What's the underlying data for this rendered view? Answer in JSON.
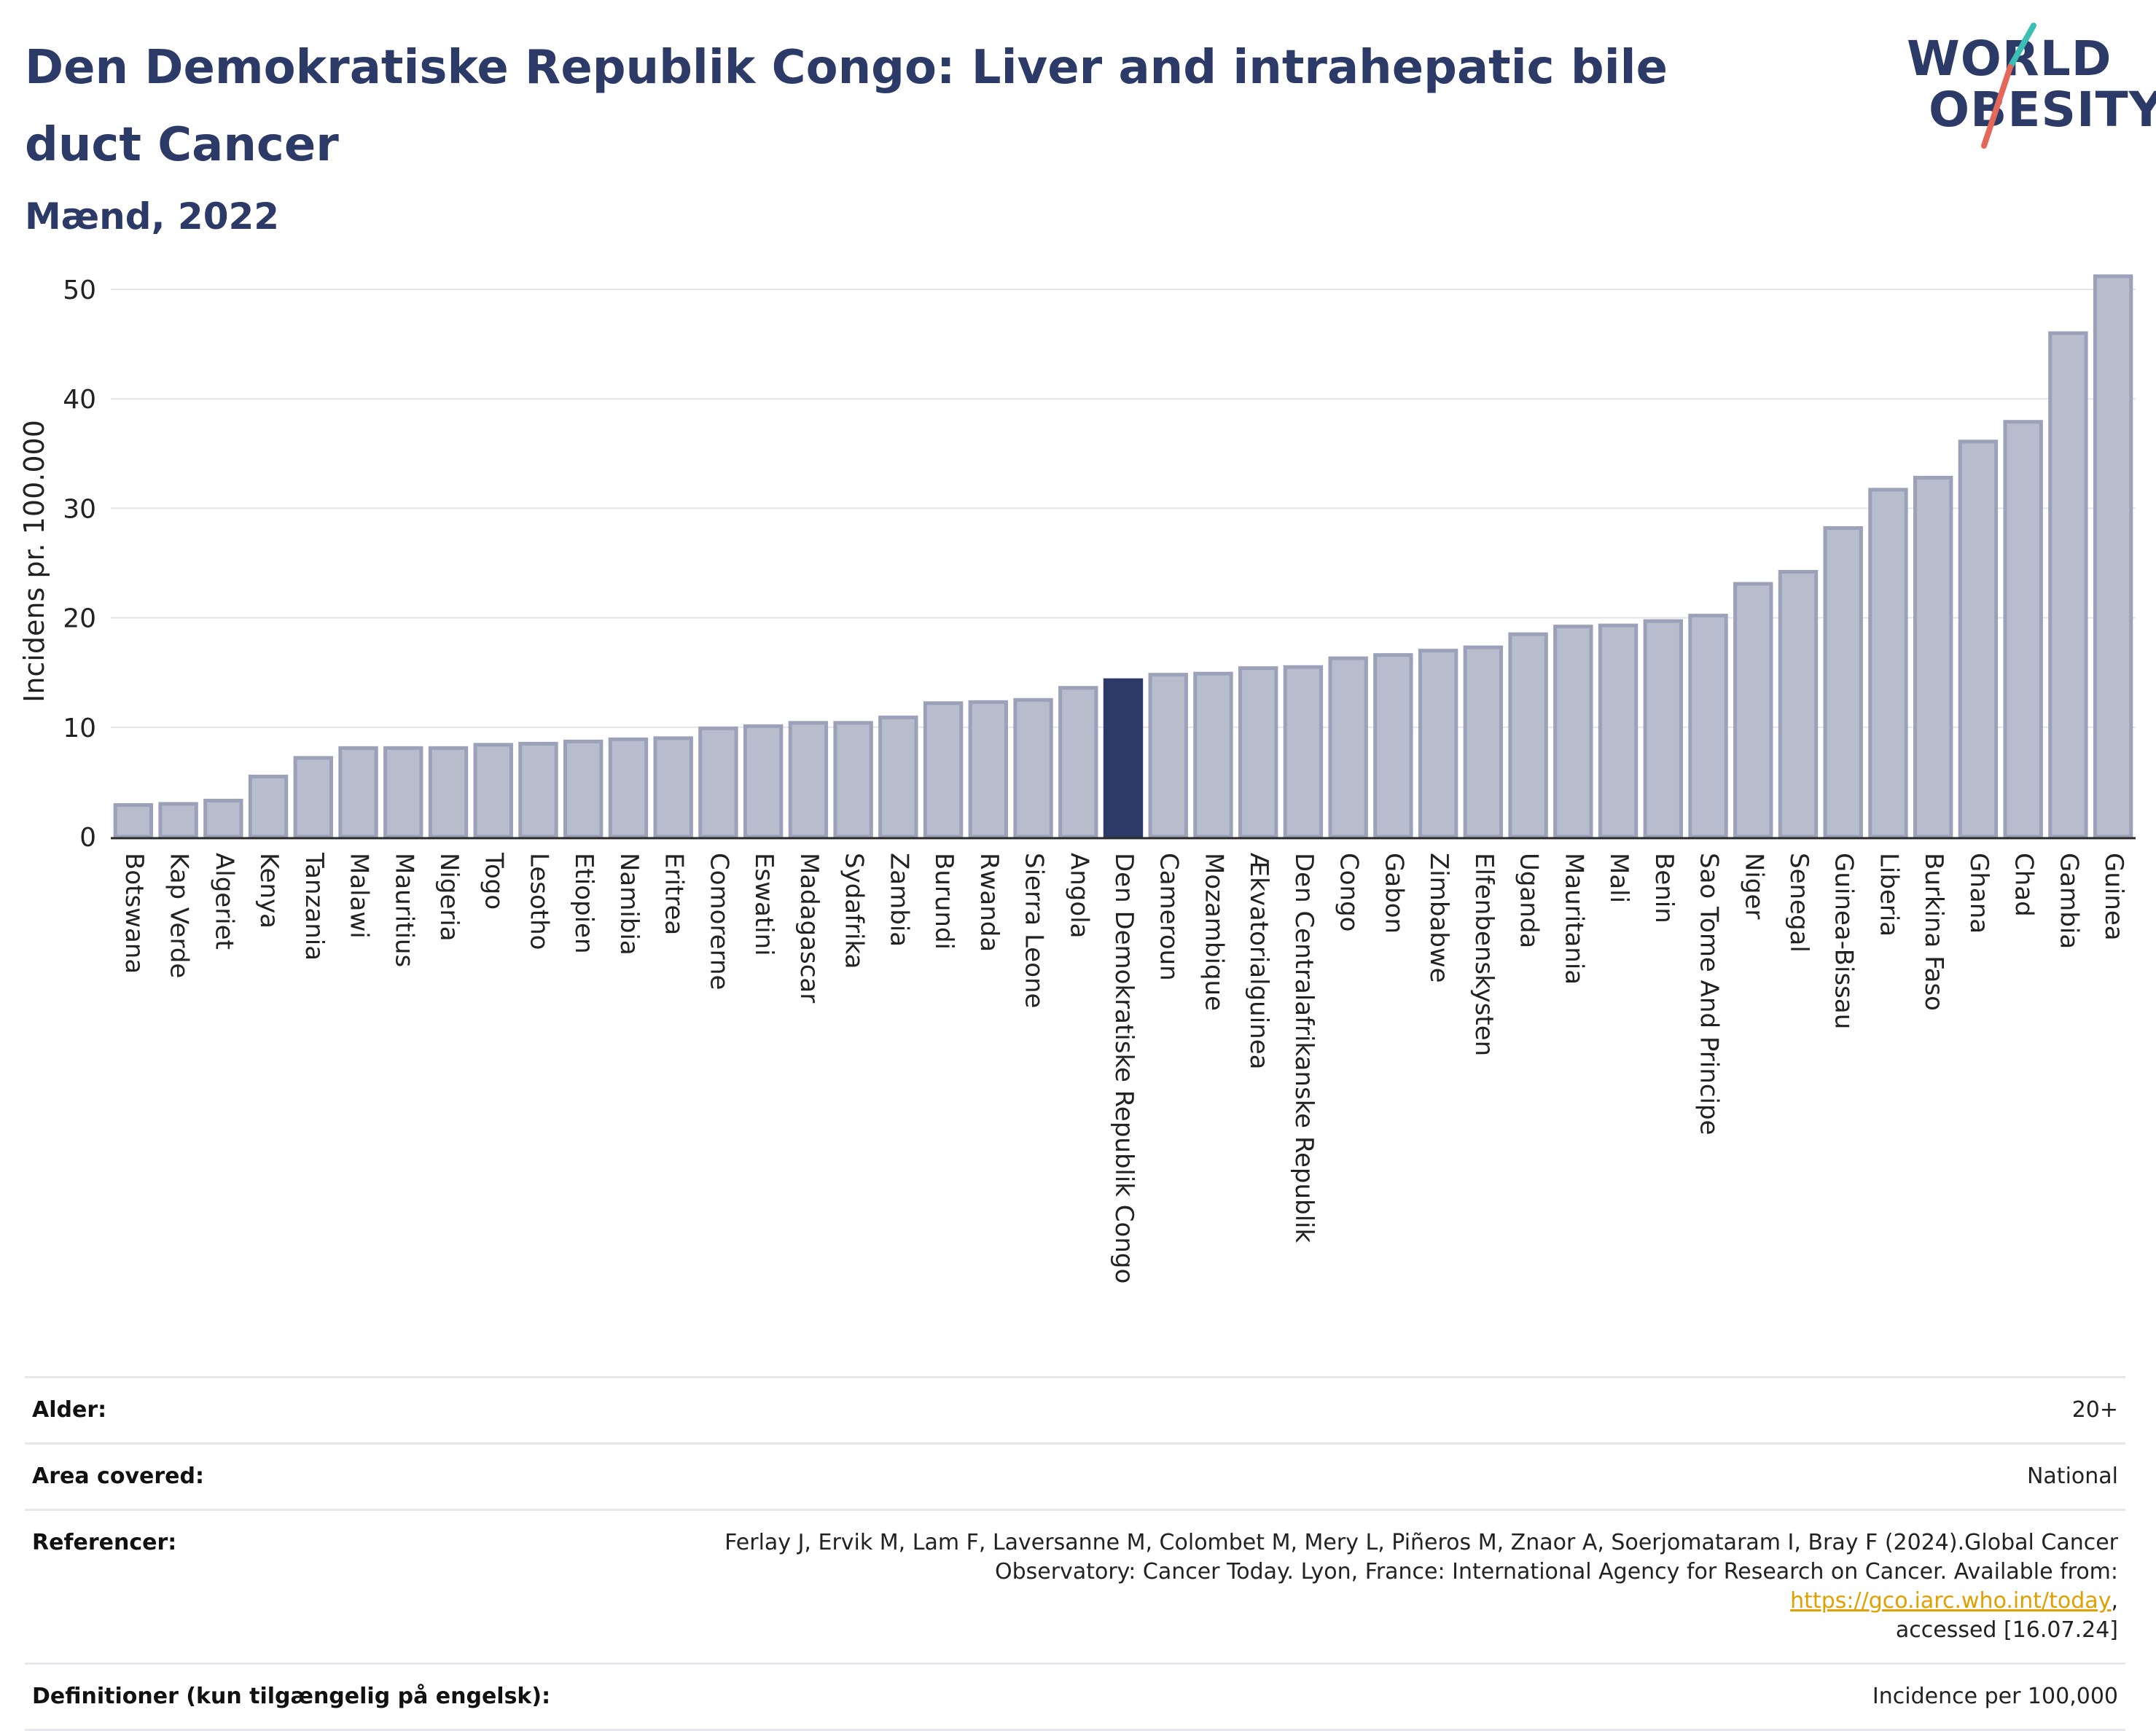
{
  "title": "Den Demokratiske Republik Congo: Liver and intrahepatic bile duct Cancer",
  "subtitle": "Mænd, 2022",
  "logo": {
    "line1": "WORLD",
    "line2": "OBESITY"
  },
  "colors": {
    "highlight": "#2b3a67",
    "bar_fill": "#b7bdcd",
    "bar_stroke": "#9aa1b8",
    "title": "#2b3a67",
    "link": "#e0a100"
  },
  "chart_data": {
    "type": "bar",
    "ylabel": "Incidens pr. 100.000",
    "ylim": [
      0,
      53
    ],
    "yticks": [
      0,
      10,
      20,
      30,
      40,
      50
    ],
    "grid": true,
    "highlight": "Den Demokratiske Republik Congo",
    "categories": [
      "Botswana",
      "Kap Verde",
      "Algeriet",
      "Kenya",
      "Tanzania",
      "Malawi",
      "Mauritius",
      "Nigeria",
      "Togo",
      "Lesotho",
      "Etiopien",
      "Namibia",
      "Eritrea",
      "Comorerne",
      "Eswatini",
      "Madagascar",
      "Sydafrika",
      "Zambia",
      "Burundi",
      "Rwanda",
      "Sierra Leone",
      "Angola",
      "Den Demokratiske Republik Congo",
      "Cameroun",
      "Mozambique",
      "Ækvatorialguinea",
      "Den Centralafrikanske Republik",
      "Congo",
      "Gabon",
      "Zimbabwe",
      "Elfenbenskysten",
      "Uganda",
      "Mauritania",
      "Mali",
      "Benin",
      "Sao Tome And Principe",
      "Niger",
      "Senegal",
      "Guinea-Bissau",
      "Liberia",
      "Burkina Faso",
      "Ghana",
      "Chad",
      "Gambia",
      "Guinea"
    ],
    "values": [
      2.9,
      3.0,
      3.3,
      5.5,
      7.2,
      8.1,
      8.1,
      8.1,
      8.4,
      8.5,
      8.7,
      8.9,
      9.0,
      9.9,
      10.1,
      10.4,
      10.4,
      10.9,
      12.2,
      12.3,
      12.5,
      13.6,
      14.3,
      14.8,
      14.9,
      15.4,
      15.5,
      16.3,
      16.6,
      17.0,
      17.3,
      18.5,
      19.2,
      19.3,
      19.7,
      20.2,
      23.1,
      24.2,
      28.2,
      31.7,
      32.8,
      36.1,
      37.9,
      46.0,
      51.2
    ]
  },
  "info": {
    "age_label": "Alder:",
    "age_value": "20+",
    "area_label": "Area covered:",
    "area_value": "National",
    "ref_label": "Referencer:",
    "ref_text_1": "Ferlay J, Ervik M, Lam F, Laversanne M, Colombet M, Mery L, Piñeros M, Znaor A, Soerjomataram I, Bray F (2024).Global Cancer",
    "ref_text_2": "Observatory: Cancer Today. Lyon, France: International Agency for Research on Cancer. Available from: ",
    "ref_link": "https://gco.iarc.who.int/today",
    "ref_text_3": ",",
    "ref_text_4": "accessed [16.07.24]",
    "def_label": "Definitioner (kun tilgængelig på engelsk):",
    "def_value": "Incidence per 100,000"
  }
}
